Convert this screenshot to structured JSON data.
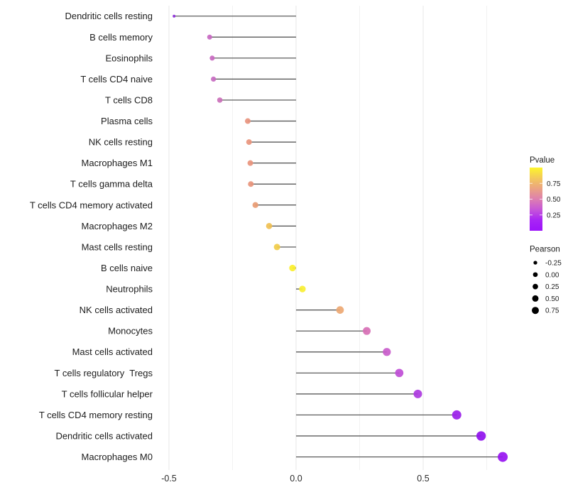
{
  "chart_data": {
    "type": "lollipop",
    "title": "",
    "xlabel": "",
    "ylabel": "",
    "xlim": [
      -0.545,
      0.85
    ],
    "x_ticks": [
      -0.5,
      0.0,
      0.5
    ],
    "x_tick_labels": [
      "-0.5",
      "0.0",
      "0.5"
    ],
    "gridlines_major": [
      -0.5,
      0.0,
      0.5
    ],
    "gridlines_minor": [
      -0.25,
      0.25,
      0.75
    ],
    "grid_on": true,
    "legend_position": "right",
    "stem_color": "#4a4a4a",
    "points": [
      {
        "label": "Dendritic cells resting",
        "pearson": -0.48,
        "color": "#8B2BD8",
        "size": 4.0
      },
      {
        "label": "B cells memory",
        "pearson": -0.34,
        "color": "#C868C2",
        "size": 7.0
      },
      {
        "label": "Eosinophils",
        "pearson": -0.33,
        "color": "#C868C0",
        "size": 7.1
      },
      {
        "label": "T cells CD4 naive",
        "pearson": -0.325,
        "color": "#C76BC1",
        "size": 7.2
      },
      {
        "label": "T cells CD8",
        "pearson": -0.3,
        "color": "#CB70BA",
        "size": 7.5
      },
      {
        "label": "Plasma cells",
        "pearson": -0.19,
        "color": "#E8947E",
        "size": 8.0
      },
      {
        "label": "NK cells resting",
        "pearson": -0.185,
        "color": "#E9957D",
        "size": 8.0
      },
      {
        "label": "Macrophages M1",
        "pearson": -0.18,
        "color": "#E9947C",
        "size": 8.0
      },
      {
        "label": "T cells gamma delta",
        "pearson": -0.178,
        "color": "#E8947B",
        "size": 8.0
      },
      {
        "label": "T cells CD4 memory activated",
        "pearson": -0.16,
        "color": "#E89B73",
        "size": 8.3
      },
      {
        "label": "Macrophages M2",
        "pearson": -0.106,
        "color": "#F0C053",
        "size": 8.7
      },
      {
        "label": "Mast cells resting",
        "pearson": -0.075,
        "color": "#F1CC49",
        "size": 9.0
      },
      {
        "label": "B cells naive",
        "pearson": -0.014,
        "color": "#FBEF2B",
        "size": 9.3
      },
      {
        "label": "Neutrophils",
        "pearson": 0.025,
        "color": "#F9EF33",
        "size": 9.3
      },
      {
        "label": "NK cells activated",
        "pearson": 0.173,
        "color": "#EDA873",
        "size": 10.7
      },
      {
        "label": "Monocytes",
        "pearson": 0.278,
        "color": "#D76FB5",
        "size": 11.0
      },
      {
        "label": "Mast cells activated",
        "pearson": 0.357,
        "color": "#C95CCB",
        "size": 11.3
      },
      {
        "label": "T cells regulatory  Tregs",
        "pearson": 0.406,
        "color": "#BF4DD6",
        "size": 11.7
      },
      {
        "label": "T cells follicular helper",
        "pearson": 0.479,
        "color": "#AC39DF",
        "size": 12.0
      },
      {
        "label": "T cells CD4 memory resting",
        "pearson": 0.632,
        "color": "#9A20E9",
        "size": 13.0
      },
      {
        "label": "Dendritic cells activated",
        "pearson": 0.728,
        "color": "#8F10EE",
        "size": 13.3
      },
      {
        "label": "Macrophages M0",
        "pearson": 0.813,
        "color": "#9713F1",
        "size": 14.0
      }
    ],
    "legend_pvalue": {
      "title": "Pvalue",
      "tick_labels": [
        "0.75",
        "0.50",
        "0.25"
      ],
      "tick_values": [
        0.75,
        0.5,
        0.25
      ],
      "range": [
        0,
        1
      ],
      "gradient_top_to_bottom": [
        "#FDF52B",
        "#F3C95B",
        "#EBA382",
        "#DD7FB0",
        "#C656D8",
        "#A825F5",
        "#9D13FA"
      ]
    },
    "legend_pearson": {
      "title": "Pearson",
      "entries": [
        {
          "label": "-0.25",
          "size": 5.3
        },
        {
          "label": "0.00",
          "size": 6.7
        },
        {
          "label": "0.25",
          "size": 7.7
        },
        {
          "label": "0.50",
          "size": 9.0
        },
        {
          "label": "0.75",
          "size": 10.0
        }
      ],
      "dot_color": "#000000"
    },
    "colors": {
      "background": "#ffffff",
      "grid_major": "#e7e7e7",
      "grid_minor": "#f2f2f2",
      "axis_text": "#2b2b2b",
      "label_text": "#1c1c1c",
      "legend_text": "#1c1c1c"
    }
  }
}
